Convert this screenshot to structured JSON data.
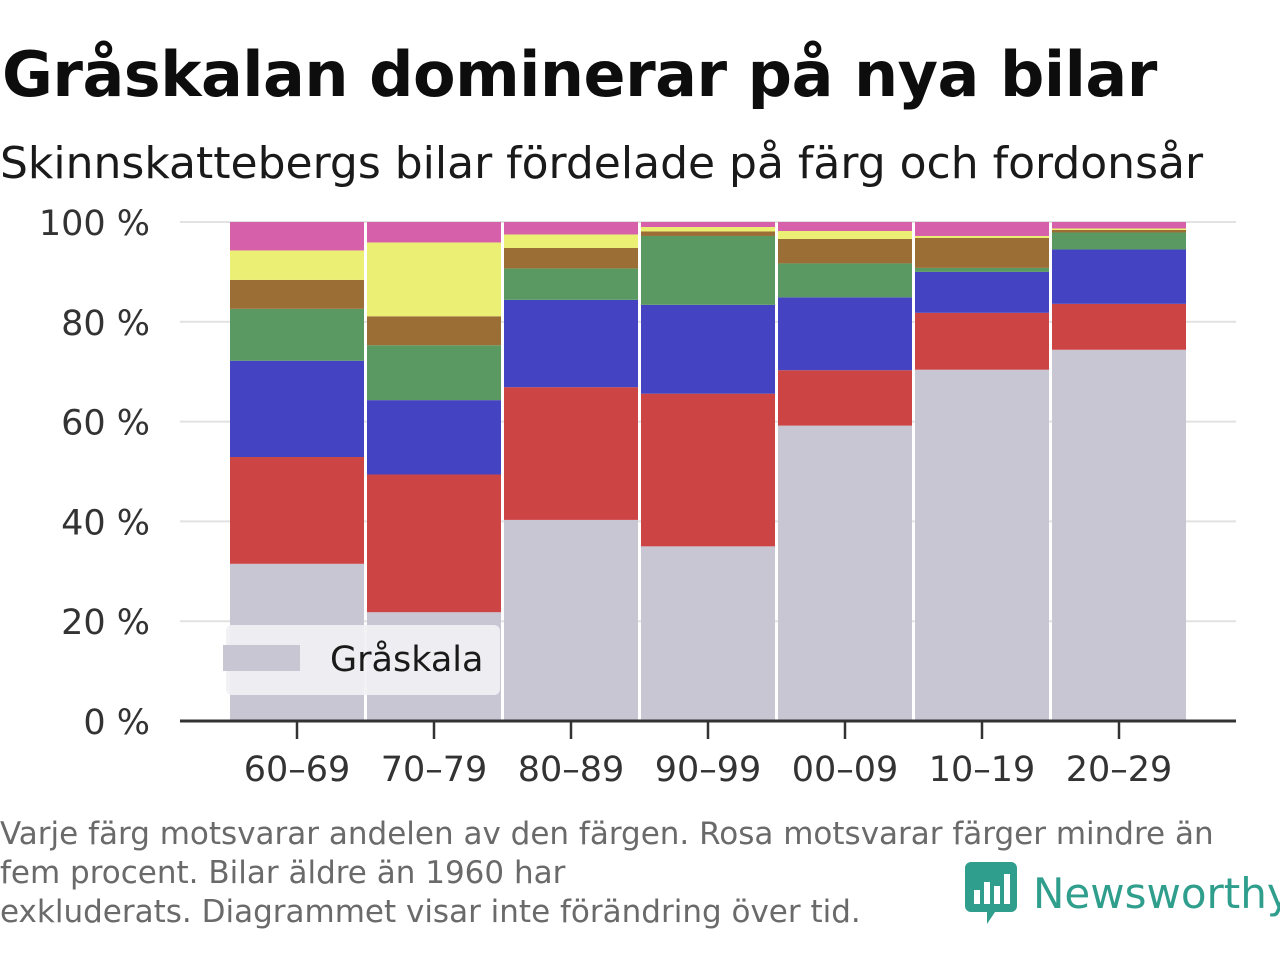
{
  "title": "Gråskalan dominerar på nya bilar",
  "subtitle": "Skinnskattebergs bilar fördelade på färg och fordonsår",
  "footnote": [
    "Varje färg motsvarar andelen av den färgen. Rosa motsvarar färger mindre än",
    "fem procent. Bilar äldre än 1960 har",
    "exkluderats. Diagrammet visar inte förändring över tid."
  ],
  "brand": "Newsworthy",
  "colors": {
    "brand": "#2f9e8c",
    "axis": "#333333",
    "grid": "#e2e2e2"
  },
  "chart_data": {
    "type": "bar",
    "stacked": true,
    "categories": [
      "60–69",
      "70–79",
      "80–89",
      "90–99",
      "00–09",
      "10–19",
      "20–29"
    ],
    "y_ticks": [
      0,
      20,
      40,
      60,
      80,
      100
    ],
    "y_tick_suffix": " %",
    "ylim": [
      0,
      100
    ],
    "grid": true,
    "legend_placement": "bottom-left",
    "series": [
      {
        "name": "Gråskala",
        "color": "#c8c6d2",
        "values": [
          31.5,
          21.8,
          40.3,
          35.0,
          59.2,
          70.4,
          74.4
        ]
      },
      {
        "color": "#cc4444",
        "values": [
          21.4,
          27.6,
          26.6,
          30.6,
          11.1,
          11.4,
          9.2
        ]
      },
      {
        "color": "#4444c2",
        "values": [
          19.3,
          14.9,
          17.5,
          17.8,
          14.6,
          8.2,
          10.9
        ]
      },
      {
        "color": "#5a9a62",
        "values": [
          10.4,
          11.0,
          6.3,
          13.8,
          6.8,
          0.8,
          3.4
        ]
      },
      {
        "color": "#9b6e35",
        "values": [
          5.8,
          5.8,
          4.1,
          0.9,
          4.9,
          6.0,
          0.5
        ]
      },
      {
        "color": "#ebef73",
        "values": [
          5.9,
          14.8,
          2.7,
          0.9,
          1.6,
          0.4,
          0.3
        ]
      },
      {
        "color": "#d660aa",
        "values": [
          5.7,
          4.1,
          2.5,
          1.0,
          1.8,
          2.8,
          1.3
        ]
      }
    ]
  }
}
